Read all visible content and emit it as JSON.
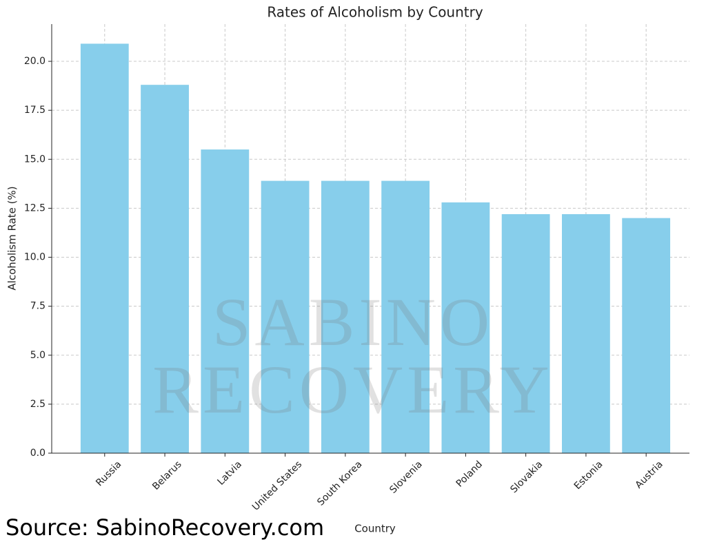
{
  "chart_data": {
    "type": "bar",
    "title": "Rates of Alcoholism by Country",
    "x_label": "Country",
    "y_label": "Alcoholism Rate (%)",
    "categories": [
      "Russia",
      "Belarus",
      "Latvia",
      "United States",
      "South Korea",
      "Slovenia",
      "Poland",
      "Slovakia",
      "Estonia",
      "Austria"
    ],
    "values": [
      20.9,
      18.8,
      15.5,
      13.9,
      13.9,
      13.9,
      12.8,
      12.2,
      12.2,
      12.0
    ],
    "color": "#87ceeb",
    "ylim": [
      0,
      21.9
    ],
    "yticks": [
      {
        "value": 0,
        "label": "0.0"
      },
      2.5,
      {
        "value": 5,
        "label": "5.0"
      },
      7.5,
      {
        "value": 10,
        "label": "10.0"
      },
      12.5,
      {
        "value": 15,
        "label": "15.0"
      },
      17.5,
      {
        "value": 20,
        "label": "20.0"
      }
    ],
    "grid": true,
    "watermark": [
      "SABINO",
      "RECOVERY"
    ],
    "source": "Source: SabinoRecovery.com"
  }
}
